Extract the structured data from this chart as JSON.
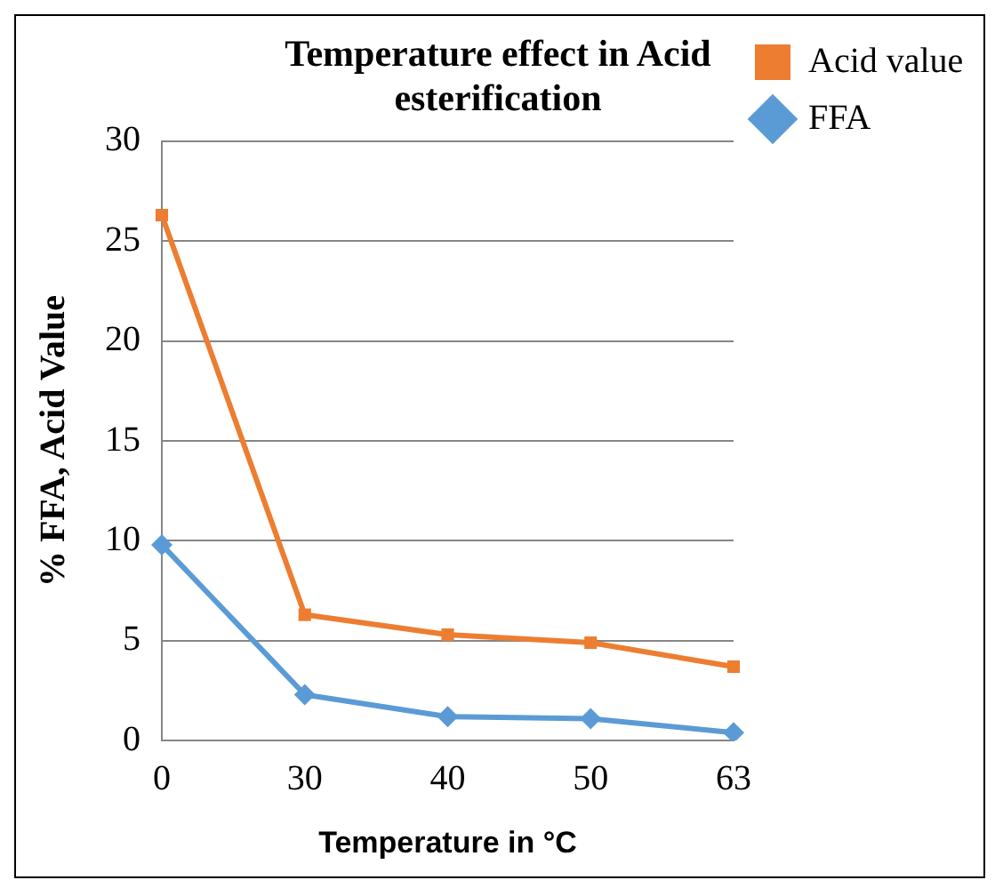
{
  "chart_data": {
    "type": "line",
    "title": "Temperature effect in Acid esterification",
    "xlabel": "Temperature in °C",
    "ylabel": "% FFA, Acid Value",
    "categories": [
      "0",
      "30",
      "40",
      "50",
      "63"
    ],
    "series": [
      {
        "name": "Acid value",
        "color": "#ed7d31",
        "marker": "square",
        "values": [
          26.3,
          6.3,
          5.3,
          4.9,
          3.7
        ]
      },
      {
        "name": "FFA",
        "color": "#5b9bd5",
        "marker": "diamond",
        "values": [
          9.8,
          2.3,
          1.2,
          1.1,
          0.4
        ]
      }
    ],
    "ylim": [
      0,
      30
    ],
    "yticks": [
      0,
      5,
      10,
      15,
      20,
      25,
      30
    ],
    "grid": "y",
    "legend": "right",
    "line_style": "solid"
  }
}
